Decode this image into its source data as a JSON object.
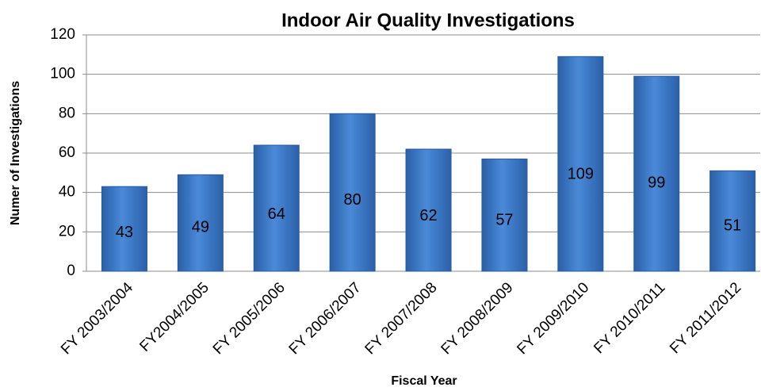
{
  "chart_data": {
    "type": "bar",
    "title": "Indoor Air Quality Investigations",
    "x_label": "Fiscal Year",
    "y_label": "Numer of Investigations",
    "categories": [
      "FY 2003/2004",
      "FY2004/2005",
      "FY 2005/2006",
      "FY 2006/2007",
      "FY 2007/2008",
      "FY 2008/2009",
      "FY 2009/2010",
      "FY 2010/2011",
      "FY 2011/2012"
    ],
    "values": [
      43,
      49,
      64,
      80,
      62,
      57,
      109,
      99,
      51
    ],
    "color": "#3f7fcf",
    "ylim": [
      0,
      120
    ],
    "yticks": [
      0,
      20,
      40,
      60,
      80,
      100,
      120
    ],
    "grid": true
  }
}
